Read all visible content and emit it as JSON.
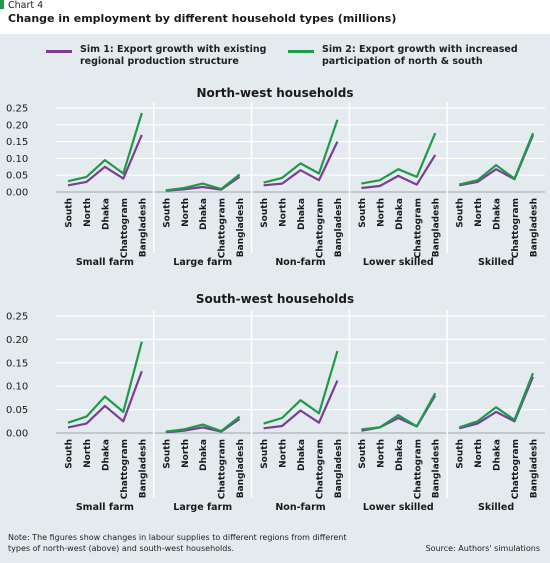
{
  "chart_label": "Chart 4",
  "title": "Change in employment by different household types (millions)",
  "colors": {
    "sim1": "#7b3d96",
    "sim2": "#1e9a4a",
    "background": "#e4ebee",
    "accent": "#1e9a4a"
  },
  "legend": [
    {
      "key": "sim1",
      "label": "Sim 1: Export growth with existing regional production structure"
    },
    {
      "key": "sim2",
      "label": "Sim 2: Export growth with increased participation of north & south"
    }
  ],
  "note": "Note: The figures show changes in labour supplies to different regions from different types of north-west (above) and south-west households.",
  "source": "Source: Authors' simulations",
  "chart_data": [
    {
      "type": "line",
      "title": "North-west households",
      "ylim": [
        0,
        0.25
      ],
      "yticks": [
        "0.00",
        "0.05",
        "0.10",
        "0.15",
        "0.20",
        "0.25"
      ],
      "categories": [
        "South",
        "North",
        "Dhaka",
        "Chattogram",
        "Bangladesh"
      ],
      "panels": [
        {
          "label": "Small farm",
          "series": [
            {
              "name": "Sim 1",
              "values": [
                0.02,
                0.03,
                0.075,
                0.04,
                0.17
              ]
            },
            {
              "name": "Sim 2",
              "values": [
                0.032,
                0.045,
                0.095,
                0.055,
                0.235
              ]
            }
          ]
        },
        {
          "label": "Large farm",
          "series": [
            {
              "name": "Sim 1",
              "values": [
                0.004,
                0.008,
                0.015,
                0.007,
                0.045
              ]
            },
            {
              "name": "Sim 2",
              "values": [
                0.005,
                0.012,
                0.025,
                0.009,
                0.052
              ]
            }
          ]
        },
        {
          "label": "Non-farm",
          "series": [
            {
              "name": "Sim 1",
              "values": [
                0.02,
                0.025,
                0.065,
                0.035,
                0.15
              ]
            },
            {
              "name": "Sim 2",
              "values": [
                0.028,
                0.042,
                0.085,
                0.055,
                0.215
              ]
            }
          ]
        },
        {
          "label": "Lower skilled",
          "series": [
            {
              "name": "Sim 1",
              "values": [
                0.012,
                0.018,
                0.048,
                0.022,
                0.11
              ]
            },
            {
              "name": "Sim 2",
              "values": [
                0.025,
                0.035,
                0.068,
                0.045,
                0.175
              ]
            }
          ]
        },
        {
          "label": "Skilled",
          "series": [
            {
              "name": "Sim 1",
              "values": [
                0.02,
                0.03,
                0.068,
                0.038,
                0.17
              ]
            },
            {
              "name": "Sim 2",
              "values": [
                0.022,
                0.035,
                0.08,
                0.04,
                0.175
              ]
            }
          ]
        }
      ]
    },
    {
      "type": "line",
      "title": "South-west households",
      "ylim": [
        0,
        0.25
      ],
      "yticks": [
        "0.00",
        "0.05",
        "0.10",
        "0.15",
        "0.20",
        "0.25"
      ],
      "categories": [
        "South",
        "North",
        "Dhaka",
        "Chattogram",
        "Bangladesh"
      ],
      "panels": [
        {
          "label": "Small farm",
          "series": [
            {
              "name": "Sim 1",
              "values": [
                0.012,
                0.02,
                0.058,
                0.025,
                0.132
              ]
            },
            {
              "name": "Sim 2",
              "values": [
                0.022,
                0.035,
                0.078,
                0.045,
                0.195
              ]
            }
          ]
        },
        {
          "label": "Large farm",
          "series": [
            {
              "name": "Sim 1",
              "values": [
                0.002,
                0.005,
                0.012,
                0.003,
                0.03
              ]
            },
            {
              "name": "Sim 2",
              "values": [
                0.003,
                0.008,
                0.018,
                0.004,
                0.035
              ]
            }
          ]
        },
        {
          "label": "Non-farm",
          "series": [
            {
              "name": "Sim 1",
              "values": [
                0.01,
                0.015,
                0.048,
                0.022,
                0.112
              ]
            },
            {
              "name": "Sim 2",
              "values": [
                0.02,
                0.032,
                0.07,
                0.042,
                0.175
              ]
            }
          ]
        },
        {
          "label": "Lower skilled",
          "series": [
            {
              "name": "Sim 1",
              "values": [
                0.005,
                0.012,
                0.032,
                0.014,
                0.08
              ]
            },
            {
              "name": "Sim 2",
              "values": [
                0.008,
                0.012,
                0.038,
                0.014,
                0.085
              ]
            }
          ]
        },
        {
          "label": "Skilled",
          "series": [
            {
              "name": "Sim 1",
              "values": [
                0.01,
                0.02,
                0.045,
                0.025,
                0.12
              ]
            },
            {
              "name": "Sim 2",
              "values": [
                0.012,
                0.025,
                0.055,
                0.028,
                0.128
              ]
            }
          ]
        }
      ]
    }
  ]
}
